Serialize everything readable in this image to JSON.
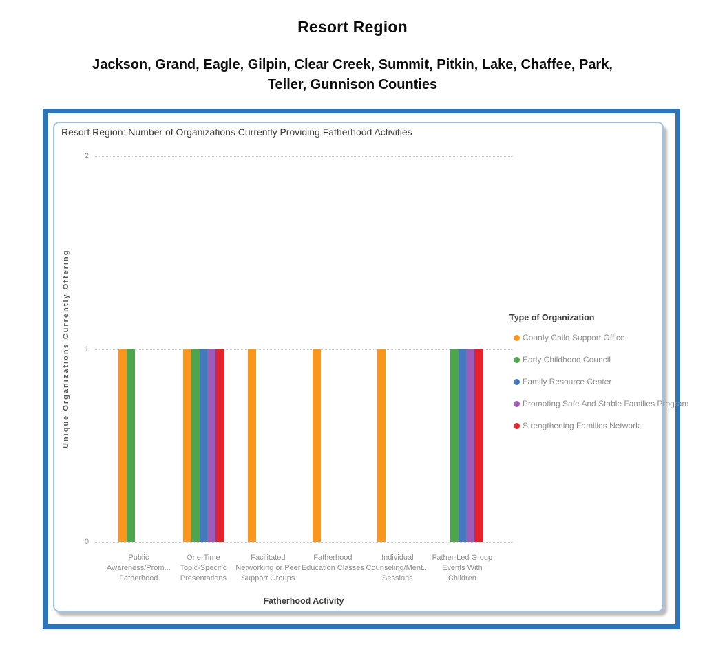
{
  "header": {
    "title": "Resort Region",
    "subtitle_line1": "Jackson, Grand, Eagle, Gilpin, Clear Creek, Summit, Pitkin, Lake, Chaffee, Park,",
    "subtitle_line2": "Teller, Gunnison Counties"
  },
  "colors": {
    "frame_border": "#2e75b6",
    "card_border": "#9dc3e6",
    "gridline": "#d4d4d4",
    "axis_text": "#8f8f8f",
    "title_text": "#3b3b3b"
  },
  "chart_data": {
    "type": "bar",
    "title": "Resort Region: Number of Organizations Currently Providing Fatherhood Activities",
    "xlabel": "Fatherhood Activity",
    "ylabel": "Unique Organizations Currently Offering",
    "ylim": [
      0,
      2
    ],
    "yticks": [
      0,
      1,
      2
    ],
    "grid": "horizontal-dotted",
    "legend_title": "Type of Organization",
    "legend_position": "right",
    "categories": [
      "Public Awareness/Prom... Fatherhood",
      "One-Time Topic-Specific Presentations",
      "Facilitated Networking or Peer Support Groups",
      "Fatherhood Education Classes",
      "Individual Counseling/Ment... Sessions",
      "Father-Led Group Events With Children"
    ],
    "categories_display": [
      [
        "Public",
        "Awareness/Prom...",
        "Fatherhood"
      ],
      [
        "One-Time",
        "Topic-Specific",
        "Presentations"
      ],
      [
        "Facilitated",
        "Networking or Peer",
        "Support Groups"
      ],
      [
        "Fatherhood",
        "Education Classes"
      ],
      [
        "Individual",
        "Counseling/Ment...",
        "Sessions"
      ],
      [
        "Father-Led Group",
        "Events With",
        "Children"
      ]
    ],
    "series": [
      {
        "name": "County Child Support Office",
        "color": "#f8961d",
        "values": [
          1,
          1,
          1,
          1,
          1,
          0
        ]
      },
      {
        "name": "Early Childhood Council",
        "color": "#4da64c",
        "values": [
          1,
          1,
          0,
          0,
          0,
          1
        ]
      },
      {
        "name": "Family Resource Center",
        "color": "#4478bc",
        "values": [
          0,
          1,
          0,
          0,
          0,
          1
        ]
      },
      {
        "name": "Promoting Safe And Stable Families Program",
        "color": "#9e5bb7",
        "values": [
          0,
          1,
          0,
          0,
          0,
          1
        ]
      },
      {
        "name": "Strengthening Families Network",
        "color": "#e2232a",
        "values": [
          0,
          1,
          0,
          0,
          0,
          1
        ]
      }
    ]
  }
}
